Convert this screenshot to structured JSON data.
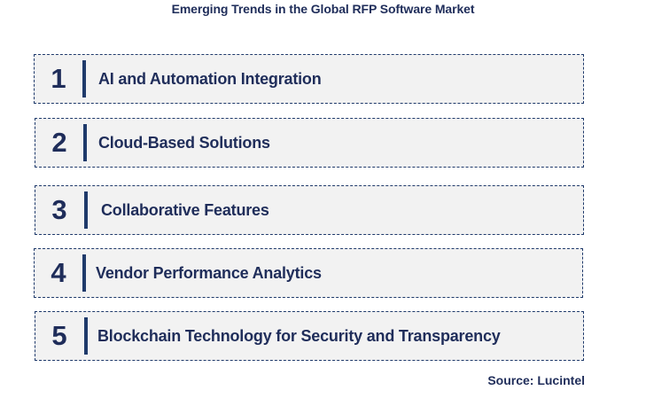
{
  "title": "Emerging Trends in the Global RFP Software Market",
  "trends": [
    {
      "number": "1",
      "label": "AI and Automation Integration"
    },
    {
      "number": "2",
      "label": "Cloud-Based Solutions"
    },
    {
      "number": "3",
      "label": "Collaborative Features"
    },
    {
      "number": "4",
      "label": "Vendor Performance Analytics"
    },
    {
      "number": "5",
      "label": "Blockchain Technology for Security and Transparency"
    }
  ],
  "source": "Source: Lucintel",
  "colors": {
    "text": "#1f2d5a",
    "box_fill": "#f2f2f2",
    "box_border": "#1f3a6b"
  }
}
